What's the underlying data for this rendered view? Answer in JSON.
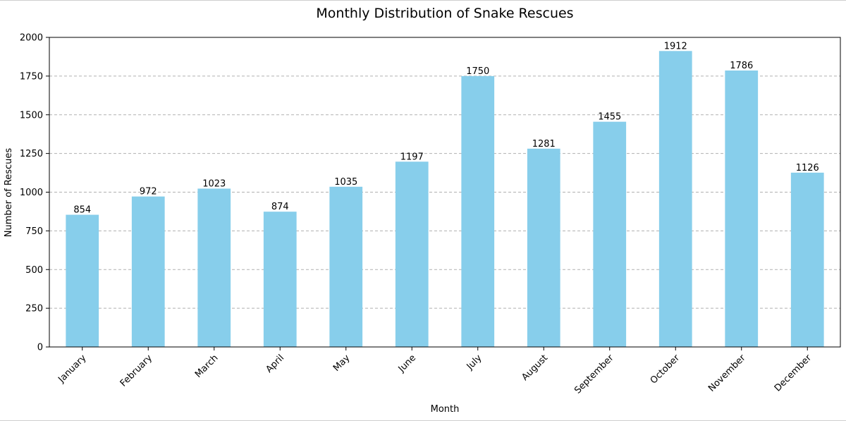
{
  "chart_data": {
    "type": "bar",
    "title": "Monthly Distribution of Snake Rescues",
    "xlabel": "Month",
    "ylabel": "Number of Rescues",
    "categories": [
      "January",
      "February",
      "March",
      "April",
      "May",
      "June",
      "July",
      "August",
      "September",
      "October",
      "November",
      "December"
    ],
    "values": [
      854,
      972,
      1023,
      874,
      1035,
      1197,
      1750,
      1281,
      1455,
      1912,
      1786,
      1126
    ],
    "ylim": [
      0,
      2000
    ],
    "yticks": [
      0,
      250,
      500,
      750,
      1000,
      1250,
      1500,
      1750,
      2000
    ],
    "grid": "y-dashed",
    "bar_color": "#87ceeb",
    "legend": "none"
  }
}
